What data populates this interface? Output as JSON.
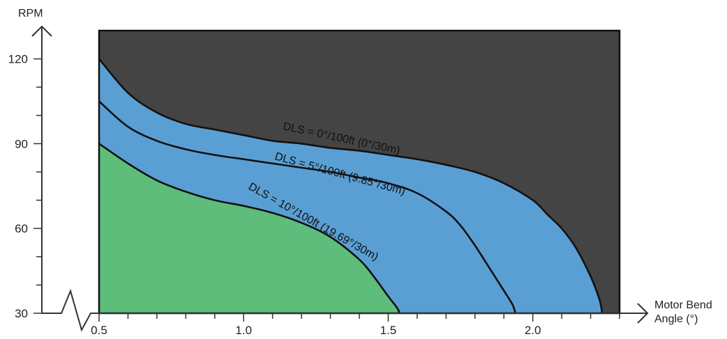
{
  "chart_data": {
    "type": "area",
    "xlabel": "Motor Bend Angle (°)",
    "xlabel_lines": [
      "Motor Bend",
      "Angle (°)"
    ],
    "ylabel": "RPM",
    "xlim": [
      0.5,
      2.3
    ],
    "ylim": [
      30,
      130
    ],
    "x_ticks": [
      0.5,
      1.0,
      1.5,
      2.0
    ],
    "x_tick_labels": [
      "0.5",
      "1.0",
      "1.5",
      "2.0"
    ],
    "x_minor_step": 0.1,
    "y_ticks": [
      30,
      60,
      90,
      120
    ],
    "y_tick_labels": [
      "30",
      "60",
      "90",
      "120"
    ],
    "y_minor_step": 10,
    "axis_break": "x",
    "colors": {
      "top_region": "#444444",
      "middle_region": "#5a9fd4",
      "bottom_region": "#5ebd7b",
      "curve": "#111111",
      "axis": "#333333"
    },
    "series": [
      {
        "name": "DLS = 0°/100ft (0°/30m)",
        "x": [
          0.5,
          0.6,
          0.7,
          0.8,
          0.9,
          1.0,
          1.1,
          1.2,
          1.3,
          1.4,
          1.5,
          1.6,
          1.7,
          1.8,
          1.9,
          2.0,
          2.05,
          2.1,
          2.15,
          2.2,
          2.23,
          2.24
        ],
        "y": [
          120,
          108,
          101,
          97,
          95,
          93,
          91,
          90,
          88.5,
          87.5,
          86,
          84.5,
          82.5,
          80,
          76,
          70,
          65,
          60,
          53,
          43,
          35,
          30
        ]
      },
      {
        "name": "DLS = 5°/100ft (9.85°/30m)",
        "x": [
          0.5,
          0.6,
          0.7,
          0.8,
          0.9,
          1.0,
          1.1,
          1.2,
          1.3,
          1.4,
          1.5,
          1.6,
          1.7,
          1.75,
          1.8,
          1.85,
          1.9,
          1.93,
          1.94
        ],
        "y": [
          105,
          96,
          91,
          88,
          86,
          84.5,
          83,
          81.5,
          80,
          78,
          76,
          72.5,
          66,
          61,
          54,
          46,
          38,
          33,
          30
        ]
      },
      {
        "name": "DLS = 10°/100ft (19.69°/30m)",
        "x": [
          0.5,
          0.6,
          0.7,
          0.8,
          0.9,
          1.0,
          1.1,
          1.2,
          1.3,
          1.4,
          1.45,
          1.5,
          1.53,
          1.54
        ],
        "y": [
          90,
          83,
          77,
          73,
          70,
          68,
          65.5,
          62,
          57,
          49,
          43,
          36,
          32,
          30
        ]
      }
    ]
  }
}
